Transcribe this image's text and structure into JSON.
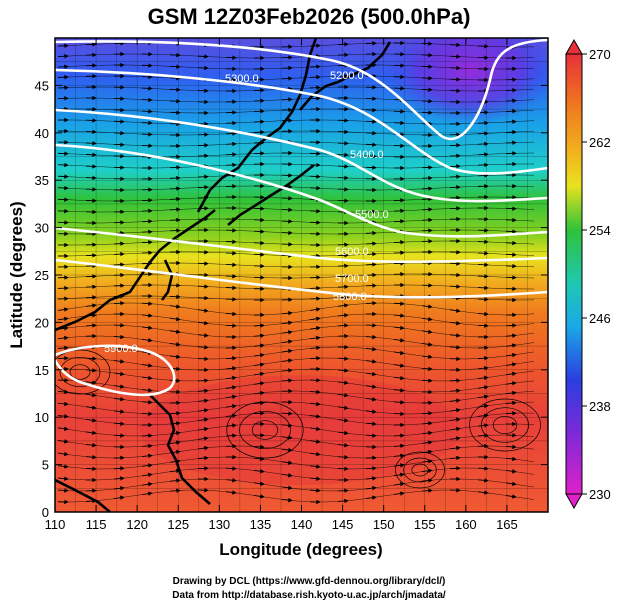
{
  "title": "GSM 12Z03Feb2026 (500.0hPa)",
  "x_axis_label": "Longitude (degrees)",
  "y_axis_label": "Latitude  (degrees)",
  "credit_line_1": "Drawing by DCL (https://www.gfd-dennou.org/library/dcl/)",
  "credit_line_2": "Data from http://database.rish.kyoto-u.ac.jp/arch/jmadata/",
  "x_ticks": [
    "110",
    "115",
    "120",
    "125",
    "130",
    "135",
    "140",
    "145",
    "150",
    "155",
    "160",
    "165"
  ],
  "y_ticks": [
    "0",
    "5",
    "10",
    "15",
    "20",
    "25",
    "30",
    "35",
    "40",
    "45"
  ],
  "colorbar_labels": [
    "270",
    "262",
    "254",
    "246",
    "238",
    "230"
  ],
  "colorbar_values": [
    270,
    262,
    254,
    246,
    238,
    230
  ],
  "contour_labels": [
    "5200.0",
    "5300.0",
    "5400.0",
    "5500.0",
    "5600.0",
    "5700.0",
    "5800.0",
    "5900.0"
  ],
  "map": {
    "lon_range": [
      110,
      170
    ],
    "lat_range": [
      0,
      50
    ],
    "fill_variable": "temperature (K)",
    "fill_range": [
      230,
      270
    ],
    "overlay": [
      "geopotential height contours (white)",
      "wind streamlines (black)",
      "coastlines"
    ]
  },
  "colors": {
    "warm": "#e8303a",
    "orange": "#f07a1e",
    "yellow": "#e8e21e",
    "green": "#2fc23a",
    "cyan": "#1fc8d8",
    "blue": "#2a3ee0",
    "purple": "#8a2ad8",
    "magenta": "#e020c8"
  }
}
